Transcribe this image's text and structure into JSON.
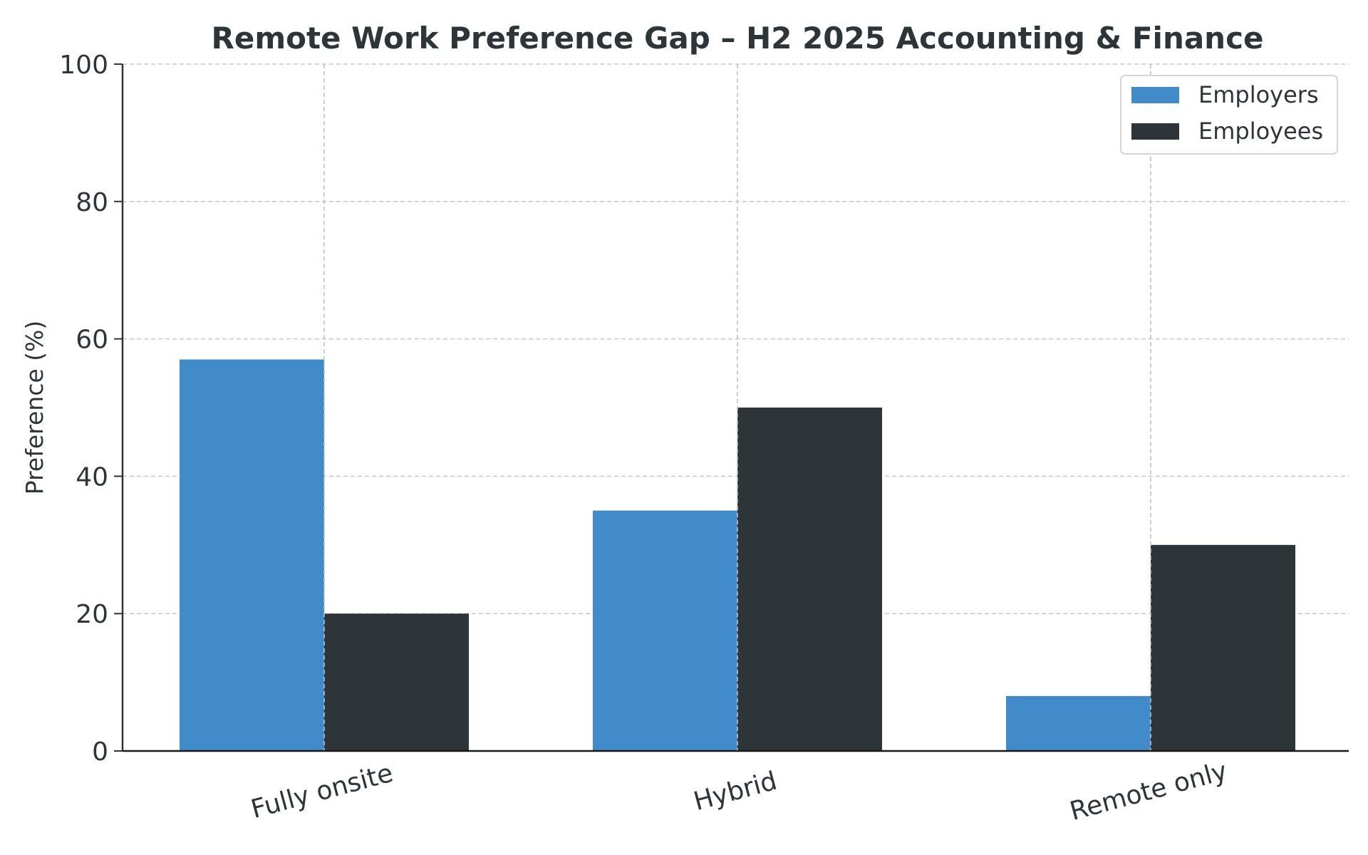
{
  "chart_data": {
    "type": "bar",
    "title": "Remote Work Preference Gap – H2 2025 Accounting & Finance",
    "xlabel": "",
    "ylabel": "Preference (%)",
    "ylim": [
      0,
      100
    ],
    "yticks": [
      "0",
      "20",
      "40",
      "60",
      "80",
      "100"
    ],
    "categories": [
      "Fully onsite",
      "Hybrid",
      "Remote only"
    ],
    "series": [
      {
        "name": "Employers",
        "values": [
          57,
          35,
          8
        ],
        "color": "#428bca"
      },
      {
        "name": "Employees",
        "values": [
          20,
          50,
          30
        ],
        "color": "#2e3539"
      }
    ],
    "grid": true,
    "legend_position": "top-right"
  }
}
